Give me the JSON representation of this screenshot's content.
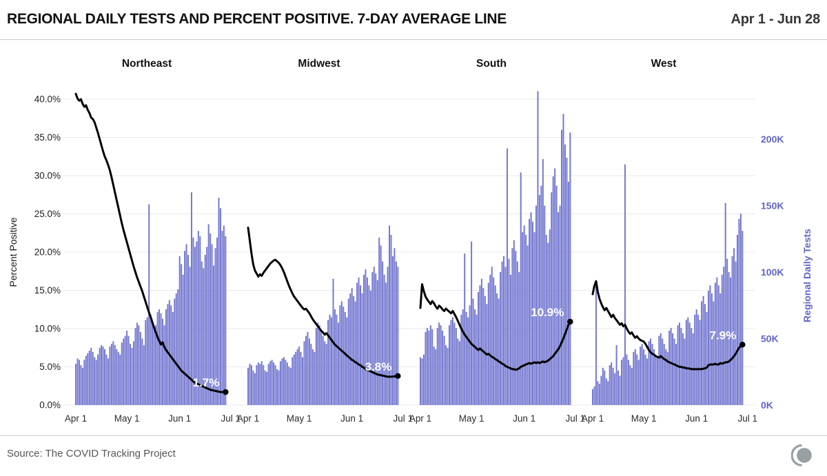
{
  "header": {
    "title": "REGIONAL DAILY TESTS AND PERCENT POSITIVE. 7-DAY AVERAGE LINE",
    "date_range": "Apr 1 - Jun 28"
  },
  "footer": {
    "source": "Source: The COVID Tracking Project",
    "logo": "covid-tracking-project-logo"
  },
  "colors": {
    "bar": "#7478d0",
    "line": "#000000",
    "grid": "#e9e9e9",
    "right_axis_text": "#6165c7",
    "left_axis_text": "#1c1c1c",
    "x_axis_text": "#2a2a2a",
    "panel_title": "#111111",
    "annotation": "#ffffff",
    "divider": "#cccccc",
    "source_text": "#565656",
    "logo_gray": "#98a0a4"
  },
  "chart_data": {
    "type": "bar",
    "overlay": "line",
    "title": "REGIONAL DAILY TESTS AND PERCENT POSITIVE. 7-DAY AVERAGE LINE",
    "subtitle": "Apr 1 - Jun 28",
    "start_date": "Apr 1",
    "end_date": "Jun 28",
    "days": 89,
    "grid": "on",
    "x_ticks": [
      "Apr 1",
      "May 1",
      "Jun 1",
      "Jul 1"
    ],
    "x_tick_day_offsets": [
      0,
      30,
      61,
      91
    ],
    "left_axis": {
      "label": "Percent Positive",
      "series": "7-day average percent positive line",
      "ticks": [
        "0.0%",
        "5.0%",
        "10.0%",
        "15.0%",
        "20.0%",
        "25.0%",
        "30.0%",
        "35.0%",
        "40.0%"
      ],
      "min": 0,
      "max": 40
    },
    "right_axis": {
      "label": "Regional Daily Tests",
      "series": "daily tests bars",
      "ticks": [
        "0K",
        "50K",
        "100K",
        "150K",
        "200K"
      ],
      "min": 0,
      "max": 200,
      "value_at_plot_top": 230
    },
    "regions": [
      {
        "name": "Northeast",
        "end_label": "1.7%",
        "bars_tests_k": [
          31,
          35,
          34,
          30,
          28,
          34,
          37,
          39,
          41,
          43,
          40,
          36,
          34,
          38,
          43,
          45,
          44,
          42,
          38,
          35,
          44,
          46,
          48,
          45,
          42,
          40,
          38,
          47,
          50,
          52,
          56,
          52,
          46,
          43,
          48,
          58,
          62,
          60,
          55,
          50,
          45,
          64,
          66,
          151,
          68,
          63,
          58,
          60,
          70,
          72,
          69,
          65,
          60,
          72,
          76,
          79,
          75,
          70,
          80,
          84,
          87,
          112,
          106,
          98,
          116,
          121,
          113,
          104,
          160,
          126,
          119,
          123,
          131,
          127,
          108,
          103,
          113,
          119,
          136,
          129,
          121,
          105,
          118,
          126,
          156,
          148,
          131,
          135,
          127
        ],
        "line_pct": [
          40.7,
          40.1,
          39.8,
          40.0,
          39.4,
          39.0,
          39.2,
          38.6,
          38.2,
          37.6,
          37.4,
          37.0,
          36.3,
          35.6,
          34.8,
          34.0,
          33.2,
          32.5,
          32.0,
          31.4,
          30.7,
          29.8,
          28.8,
          27.8,
          26.8,
          25.8,
          24.8,
          23.8,
          22.9,
          22.1,
          21.3,
          20.5,
          19.7,
          18.9,
          18.1,
          17.4,
          16.7,
          16.1,
          15.5,
          14.9,
          14.2,
          13.5,
          12.8,
          12.1,
          11.5,
          10.8,
          10.1,
          9.5,
          8.9,
          8.4,
          7.9,
          8.2,
          7.6,
          7.2,
          6.9,
          6.6,
          6.3,
          6.0,
          5.7,
          5.4,
          5.1,
          4.8,
          4.5,
          4.3,
          4.1,
          3.9,
          3.7,
          3.5,
          3.3,
          3.1,
          2.9,
          2.8,
          2.7,
          2.6,
          2.5,
          2.4,
          2.3,
          2.2,
          2.1,
          2.0,
          1.95,
          1.9,
          1.85,
          1.8,
          1.75,
          1.7,
          1.7,
          1.7,
          1.7
        ]
      },
      {
        "name": "Midwest",
        "end_label": "3.8%",
        "bars_tests_k": [
          28,
          31,
          30,
          26,
          24,
          30,
          32,
          31,
          33,
          30,
          26,
          25,
          31,
          33,
          34,
          32,
          30,
          27,
          26,
          33,
          35,
          36,
          34,
          32,
          29,
          28,
          36,
          38,
          40,
          42,
          44,
          40,
          36,
          48,
          52,
          55,
          50,
          46,
          42,
          40,
          58,
          62,
          60,
          56,
          52,
          48,
          46,
          64,
          68,
          66,
          95,
          72,
          68,
          62,
          75,
          78,
          74,
          70,
          66,
          80,
          84,
          88,
          82,
          78,
          92,
          96,
          90,
          84,
          98,
          102,
          96,
          90,
          86,
          100,
          104,
          99,
          94,
          126,
          120,
          108,
          98,
          92,
          104,
          135,
          128,
          112,
          118,
          108,
          104
        ],
        "line_pct": [
          23.2,
          21.5,
          19.8,
          18.4,
          17.6,
          17.2,
          16.8,
          17.1,
          16.9,
          17.3,
          17.6,
          17.9,
          18.2,
          18.5,
          18.7,
          18.9,
          19.0,
          18.8,
          18.6,
          18.3,
          17.9,
          17.4,
          16.8,
          16.2,
          15.6,
          15.1,
          14.6,
          14.2,
          13.9,
          13.6,
          13.3,
          13.0,
          12.7,
          12.5,
          12.6,
          12.3,
          12.0,
          11.6,
          11.2,
          10.9,
          10.6,
          10.3,
          10.0,
          9.7,
          9.5,
          9.2,
          9.4,
          9.1,
          8.8,
          8.5,
          8.2,
          7.9,
          7.7,
          7.5,
          7.3,
          7.1,
          6.9,
          6.7,
          6.5,
          6.3,
          6.1,
          5.9,
          5.8,
          5.6,
          5.5,
          5.3,
          5.2,
          5.0,
          4.9,
          4.7,
          4.6,
          4.5,
          4.4,
          4.3,
          4.2,
          4.1,
          4.0,
          3.95,
          3.9,
          3.85,
          3.8,
          3.75,
          3.7,
          3.7,
          3.7,
          3.72,
          3.75,
          3.78,
          3.8
        ]
      },
      {
        "name": "South",
        "end_label": "10.9%",
        "bars_tests_k": [
          36,
          35,
          38,
          55,
          58,
          56,
          60,
          57,
          44,
          42,
          58,
          62,
          60,
          56,
          52,
          45,
          43,
          60,
          64,
          66,
          62,
          58,
          50,
          48,
          68,
          72,
          114,
          70,
          66,
          75,
          123,
          80,
          72,
          68,
          85,
          90,
          95,
          88,
          82,
          76,
          92,
          98,
          104,
          96,
          90,
          84,
          80,
          100,
          108,
          112,
          104,
          193,
          110,
          98,
          118,
          124,
          116,
          108,
          100,
          175,
          130,
          135,
          128,
          120,
          140,
          145,
          138,
          130,
          150,
          236,
          158,
          165,
          185,
          150,
          128,
          122,
          132,
          160,
          172,
          178,
          165,
          145,
          150,
          207,
          219,
          196,
          186,
          168,
          205
        ],
        "line_pct": [
          12.7,
          15.8,
          14.9,
          14.2,
          13.8,
          13.5,
          13.2,
          13.6,
          13.3,
          12.9,
          12.6,
          13.0,
          12.8,
          12.5,
          12.3,
          12.6,
          12.4,
          12.2,
          12.0,
          12.3,
          11.9,
          11.5,
          11.0,
          10.5,
          10.0,
          9.6,
          9.2,
          8.9,
          8.6,
          8.3,
          8.0,
          7.8,
          7.6,
          7.4,
          7.2,
          7.4,
          7.2,
          7.0,
          6.8,
          6.6,
          6.7,
          6.5,
          6.3,
          6.2,
          6.0,
          5.9,
          5.7,
          5.6,
          5.4,
          5.3,
          5.1,
          5.0,
          4.9,
          4.8,
          4.7,
          4.7,
          4.6,
          4.7,
          4.8,
          5.0,
          5.1,
          5.2,
          5.3,
          5.4,
          5.5,
          5.4,
          5.5,
          5.6,
          5.5,
          5.6,
          5.5,
          5.6,
          5.7,
          5.6,
          5.7,
          5.8,
          6.0,
          6.2,
          6.4,
          6.7,
          7.0,
          7.3,
          7.7,
          8.2,
          8.7,
          9.3,
          9.9,
          10.5,
          10.9
        ]
      },
      {
        "name": "West",
        "end_label": "7.9%",
        "bars_tests_k": [
          12,
          14,
          91,
          18,
          16,
          22,
          28,
          26,
          20,
          18,
          30,
          32,
          28,
          24,
          45,
          26,
          22,
          34,
          36,
          181,
          38,
          34,
          30,
          28,
          40,
          42,
          38,
          34,
          44,
          46,
          42,
          38,
          35,
          48,
          50,
          46,
          42,
          38,
          36,
          52,
          54,
          50,
          46,
          42,
          40,
          56,
          58,
          54,
          50,
          46,
          60,
          62,
          58,
          54,
          50,
          64,
          66,
          62,
          58,
          54,
          68,
          72,
          68,
          64,
          78,
          82,
          76,
          70,
          86,
          90,
          84,
          78,
          92,
          96,
          90,
          84,
          98,
          104,
          152,
          110,
          100,
          96,
          112,
          118,
          108,
          128,
          140,
          144,
          131
        ],
        "line_pct": [
          14.5,
          15.6,
          16.2,
          14.8,
          13.9,
          13.3,
          12.8,
          12.4,
          12.7,
          12.3,
          11.9,
          11.5,
          11.8,
          11.4,
          11.1,
          10.8,
          10.5,
          10.7,
          10.3,
          10.5,
          10.0,
          9.6,
          9.3,
          9.5,
          9.1,
          8.8,
          9.0,
          8.7,
          8.5,
          8.4,
          8.3,
          8.0,
          7.6,
          7.2,
          6.9,
          6.7,
          6.6,
          6.4,
          6.3,
          6.2,
          6.4,
          6.2,
          6.0,
          5.9,
          5.7,
          5.6,
          5.5,
          5.4,
          5.3,
          5.2,
          5.1,
          5.0,
          5.0,
          4.9,
          4.9,
          4.8,
          4.8,
          4.75,
          4.7,
          4.7,
          4.7,
          4.7,
          4.7,
          4.7,
          4.7,
          4.75,
          4.8,
          4.9,
          5.2,
          5.3,
          5.3,
          5.3,
          5.4,
          5.3,
          5.3,
          5.5,
          5.4,
          5.5,
          5.6,
          5.6,
          5.7,
          5.9,
          6.1,
          6.4,
          6.7,
          7.1,
          7.5,
          7.7,
          7.9
        ]
      }
    ]
  }
}
